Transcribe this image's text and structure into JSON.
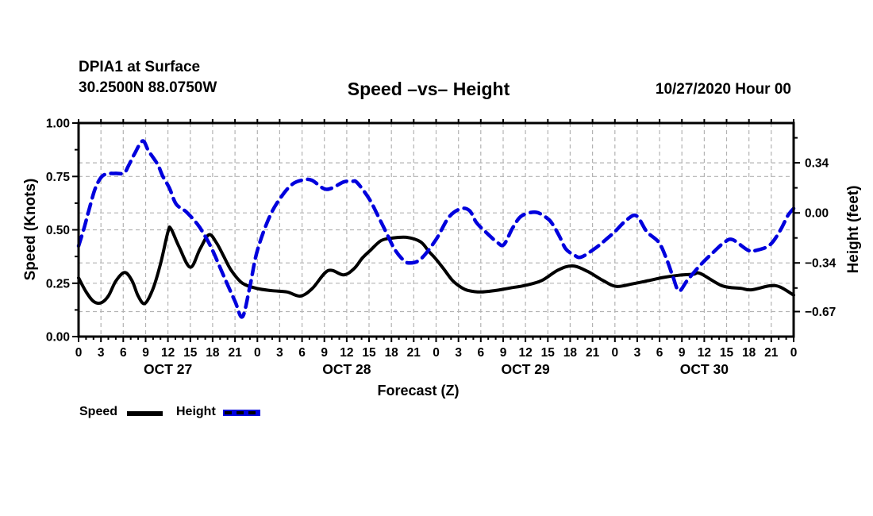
{
  "header": {
    "station": "DPIA1 at Surface",
    "location": "30.2500N 88.0750W",
    "title": "Speed –vs– Height",
    "run_time": "10/27/2020 Hour 00"
  },
  "legend": {
    "speed_label": "Speed",
    "height_label": "Height"
  },
  "chart_data": {
    "type": "line",
    "title": "Speed –vs– Height",
    "xlabel": "Forecast (Z)",
    "ylabel_left": "Speed (Knots)",
    "ylabel_right": "Height (feet)",
    "x_unit": "forecast hour",
    "x_range": [
      0,
      96
    ],
    "x_major_tick_hours": 3,
    "x_minor_tick_hours": 1,
    "x_tick_labels": [
      "0",
      "3",
      "6",
      "9",
      "12",
      "15",
      "18",
      "21",
      "0",
      "3",
      "6",
      "9",
      "12",
      "15",
      "18",
      "21",
      "0",
      "3",
      "6",
      "9",
      "12",
      "15",
      "18",
      "21",
      "0",
      "3",
      "6",
      "9",
      "12",
      "15",
      "18",
      "21",
      "0"
    ],
    "day_labels": [
      {
        "text": "OCT 27",
        "center_hour": 12
      },
      {
        "text": "OCT 28",
        "center_hour": 36
      },
      {
        "text": "OCT 29",
        "center_hour": 60
      },
      {
        "text": "OCT 30",
        "center_hour": 84
      }
    ],
    "left_axis": {
      "range": [
        0.0,
        1.0
      ],
      "ticks": [
        {
          "v": 1.0,
          "label": "1.00"
        },
        {
          "v": 0.75,
          "label": "0.75"
        },
        {
          "v": 0.5,
          "label": "0.50"
        },
        {
          "v": 0.25,
          "label": "0.25"
        },
        {
          "v": 0.0,
          "label": "0.00"
        }
      ],
      "minor_ticks": [
        0.875,
        0.625,
        0.375,
        0.125
      ]
    },
    "right_axis": {
      "range": [
        -0.84,
        0.61
      ],
      "ticks": [
        {
          "v": 0.34,
          "label": "0.34"
        },
        {
          "v": 0.0,
          "label": "0.00"
        },
        {
          "v": -0.34,
          "label": "−0.34"
        },
        {
          "v": -0.67,
          "label": "−0.67"
        }
      ],
      "minor_ticks": [
        0.51,
        0.17,
        -0.17,
        -0.51
      ]
    },
    "grid": {
      "color": "#b3b3b3",
      "dash": [
        5,
        4
      ],
      "horizontal_left_values": [
        0.25,
        0.5,
        0.75
      ],
      "horizontal_right_values": [
        0.34,
        0.0,
        -0.34,
        -0.67
      ]
    },
    "series": [
      {
        "name": "Speed",
        "axis": "left",
        "color": "#000000",
        "style": "solid",
        "stroke_width": 4,
        "points": [
          [
            0,
            0.275
          ],
          [
            1,
            0.21
          ],
          [
            2,
            0.165
          ],
          [
            3,
            0.158
          ],
          [
            4,
            0.19
          ],
          [
            5,
            0.26
          ],
          [
            6.2,
            0.3
          ],
          [
            7.2,
            0.26
          ],
          [
            8,
            0.19
          ],
          [
            8.9,
            0.155
          ],
          [
            10,
            0.225
          ],
          [
            11,
            0.34
          ],
          [
            12,
            0.49
          ],
          [
            12.4,
            0.505
          ],
          [
            13.5,
            0.42
          ],
          [
            15,
            0.325
          ],
          [
            16.3,
            0.41
          ],
          [
            17.5,
            0.477
          ],
          [
            18.5,
            0.44
          ],
          [
            19.5,
            0.375
          ],
          [
            20.5,
            0.31
          ],
          [
            22,
            0.25
          ],
          [
            24,
            0.225
          ],
          [
            26,
            0.215
          ],
          [
            28,
            0.209
          ],
          [
            29.8,
            0.19
          ],
          [
            31.4,
            0.226
          ],
          [
            33.5,
            0.309
          ],
          [
            35.6,
            0.289
          ],
          [
            37,
            0.319
          ],
          [
            38.1,
            0.368
          ],
          [
            39.2,
            0.405
          ],
          [
            40.6,
            0.449
          ],
          [
            42,
            0.461
          ],
          [
            44,
            0.465
          ],
          [
            45.9,
            0.444
          ],
          [
            47,
            0.4
          ],
          [
            48,
            0.362
          ],
          [
            49,
            0.318
          ],
          [
            50.2,
            0.263
          ],
          [
            51.3,
            0.232
          ],
          [
            52.3,
            0.216
          ],
          [
            54,
            0.209
          ],
          [
            56,
            0.216
          ],
          [
            58,
            0.228
          ],
          [
            60,
            0.24
          ],
          [
            62.2,
            0.263
          ],
          [
            64.4,
            0.312
          ],
          [
            66.3,
            0.331
          ],
          [
            68.3,
            0.306
          ],
          [
            70.4,
            0.263
          ],
          [
            72.2,
            0.235
          ],
          [
            74.5,
            0.248
          ],
          [
            76.5,
            0.262
          ],
          [
            78.5,
            0.277
          ],
          [
            80.5,
            0.287
          ],
          [
            82.5,
            0.292
          ],
          [
            83.5,
            0.295
          ],
          [
            86.4,
            0.238
          ],
          [
            88.9,
            0.226
          ],
          [
            90.3,
            0.219
          ],
          [
            92.8,
            0.238
          ],
          [
            94.2,
            0.232
          ],
          [
            96,
            0.194
          ]
        ]
      },
      {
        "name": "Height",
        "axis": "right",
        "color": "#0000dd",
        "style": "dashed",
        "stroke_width": 4.5,
        "dash": [
          13,
          8
        ],
        "points": [
          [
            0,
            -0.225
          ],
          [
            0.7,
            -0.11
          ],
          [
            1.4,
            0.02
          ],
          [
            2.2,
            0.16
          ],
          [
            3,
            0.24
          ],
          [
            3.8,
            0.265
          ],
          [
            5,
            0.268
          ],
          [
            6.1,
            0.27
          ],
          [
            6.7,
            0.32
          ],
          [
            7.5,
            0.4
          ],
          [
            8.6,
            0.488
          ],
          [
            9.4,
            0.42
          ],
          [
            10.6,
            0.33
          ],
          [
            11.3,
            0.249
          ],
          [
            12.2,
            0.168
          ],
          [
            13.1,
            0.06
          ],
          [
            14.5,
            0.005
          ],
          [
            16,
            -0.08
          ],
          [
            17,
            -0.16
          ],
          [
            18,
            -0.255
          ],
          [
            19.5,
            -0.43
          ],
          [
            21,
            -0.6
          ],
          [
            22,
            -0.705
          ],
          [
            23,
            -0.5
          ],
          [
            24,
            -0.255
          ],
          [
            25.7,
            -0.02
          ],
          [
            27.3,
            0.115
          ],
          [
            28.7,
            0.195
          ],
          [
            30,
            0.222
          ],
          [
            31.3,
            0.222
          ],
          [
            33.3,
            0.16
          ],
          [
            35.6,
            0.21
          ],
          [
            36.8,
            0.215
          ],
          [
            37.4,
            0.205
          ],
          [
            39,
            0.097
          ],
          [
            40.2,
            -0.02
          ],
          [
            41.5,
            -0.154
          ],
          [
            42.4,
            -0.244
          ],
          [
            43.4,
            -0.31
          ],
          [
            44.3,
            -0.34
          ],
          [
            45.9,
            -0.315
          ],
          [
            48,
            -0.18
          ],
          [
            49.7,
            -0.03
          ],
          [
            51.3,
            0.028
          ],
          [
            52.5,
            0.015
          ],
          [
            53.4,
            -0.065
          ],
          [
            54.6,
            -0.127
          ],
          [
            56.2,
            -0.2
          ],
          [
            57.1,
            -0.215
          ],
          [
            58.3,
            -0.1
          ],
          [
            59.5,
            -0.02
          ],
          [
            61.4,
            0.004
          ],
          [
            63,
            -0.04
          ],
          [
            63.7,
            -0.082
          ],
          [
            64.6,
            -0.163
          ],
          [
            65.4,
            -0.244
          ],
          [
            66.5,
            -0.285
          ],
          [
            67.5,
            -0.3
          ],
          [
            69.5,
            -0.235
          ],
          [
            70.8,
            -0.181
          ],
          [
            72,
            -0.127
          ],
          [
            73.6,
            -0.047
          ],
          [
            74.9,
            -0.02
          ],
          [
            76.3,
            -0.128
          ],
          [
            77.9,
            -0.2
          ],
          [
            78.9,
            -0.308
          ],
          [
            79.8,
            -0.434
          ],
          [
            80.6,
            -0.53
          ],
          [
            81.7,
            -0.46
          ],
          [
            83.5,
            -0.353
          ],
          [
            85.3,
            -0.263
          ],
          [
            86.7,
            -0.2
          ],
          [
            87.8,
            -0.182
          ],
          [
            89.9,
            -0.254
          ],
          [
            91,
            -0.254
          ],
          [
            92.8,
            -0.218
          ],
          [
            94.2,
            -0.119
          ],
          [
            95.2,
            -0.02
          ],
          [
            96,
            0.03
          ]
        ]
      }
    ]
  }
}
